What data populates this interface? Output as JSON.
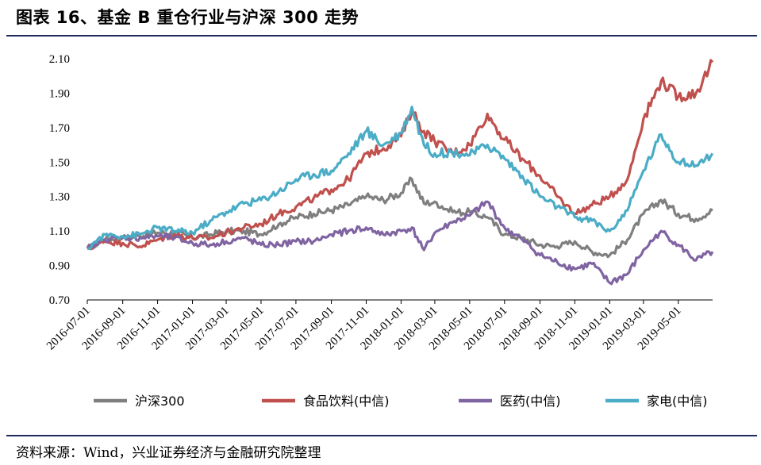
{
  "figure": {
    "title": "图表 16、基金 B 重仓行业与沪深 300 走势",
    "source": "资料来源：Wind，兴业证券经济与金融研究院整理"
  },
  "chart_data": {
    "type": "line",
    "title": "图表 16、基金 B 重仓行业与沪深 300 走势",
    "xlabel": "",
    "ylabel": "",
    "ylim": [
      0.7,
      2.1
    ],
    "yticks": [
      "0.70",
      "0.90",
      "1.10",
      "1.30",
      "1.50",
      "1.70",
      "1.90",
      "2.10"
    ],
    "grid": false,
    "legend_position": "bottom",
    "x_tick_labels": [
      "2016-07-01",
      "2016-09-01",
      "2016-11-01",
      "2017-01-01",
      "2017-03-01",
      "2017-05-01",
      "2017-07-01",
      "2017-09-01",
      "2017-11-01",
      "2018-01-01",
      "2018-03-01",
      "2018-05-01",
      "2018-07-01",
      "2018-09-01",
      "2018-11-01",
      "2019-01-01",
      "2019-03-01",
      "2019-05-01"
    ],
    "x": [
      "2016-07-01",
      "2016-08-01",
      "2016-09-01",
      "2016-10-01",
      "2016-11-01",
      "2016-12-01",
      "2017-01-01",
      "2017-02-01",
      "2017-03-01",
      "2017-04-01",
      "2017-05-01",
      "2017-06-01",
      "2017-07-01",
      "2017-08-01",
      "2017-09-01",
      "2017-10-01",
      "2017-11-01",
      "2017-12-01",
      "2018-01-01",
      "2018-01-20",
      "2018-02-10",
      "2018-03-01",
      "2018-04-01",
      "2018-05-01",
      "2018-06-01",
      "2018-07-01",
      "2018-08-01",
      "2018-09-01",
      "2018-10-01",
      "2018-11-01",
      "2018-12-01",
      "2019-01-01",
      "2019-02-01",
      "2019-03-01",
      "2019-04-01",
      "2019-05-01",
      "2019-06-01",
      "2019-06-30"
    ],
    "series": [
      {
        "name": "沪深300",
        "color": "#7f7f7f",
        "values": [
          1.0,
          1.05,
          1.06,
          1.07,
          1.09,
          1.09,
          1.06,
          1.08,
          1.1,
          1.1,
          1.08,
          1.14,
          1.18,
          1.2,
          1.22,
          1.25,
          1.3,
          1.28,
          1.32,
          1.4,
          1.26,
          1.27,
          1.21,
          1.21,
          1.18,
          1.08,
          1.06,
          1.02,
          1.01,
          1.04,
          0.98,
          0.96,
          1.05,
          1.2,
          1.28,
          1.2,
          1.17,
          1.22
        ]
      },
      {
        "name": "食品饮料(中信)",
        "color": "#c0504d",
        "values": [
          1.0,
          1.04,
          1.03,
          1.01,
          1.05,
          1.08,
          1.06,
          1.06,
          1.09,
          1.12,
          1.14,
          1.2,
          1.24,
          1.29,
          1.34,
          1.4,
          1.55,
          1.58,
          1.65,
          1.8,
          1.68,
          1.62,
          1.55,
          1.6,
          1.78,
          1.63,
          1.52,
          1.42,
          1.3,
          1.2,
          1.25,
          1.3,
          1.4,
          1.75,
          1.97,
          1.88,
          1.9,
          2.08
        ]
      },
      {
        "name": "医药(中信)",
        "color": "#8064a2",
        "values": [
          1.0,
          1.05,
          1.06,
          1.06,
          1.07,
          1.06,
          1.03,
          1.02,
          1.04,
          1.06,
          1.02,
          1.02,
          1.04,
          1.04,
          1.08,
          1.1,
          1.12,
          1.08,
          1.1,
          1.12,
          0.99,
          1.09,
          1.15,
          1.19,
          1.27,
          1.12,
          1.05,
          0.96,
          0.92,
          0.88,
          0.91,
          0.8,
          0.85,
          0.99,
          1.1,
          1.02,
          0.93,
          0.98
        ]
      },
      {
        "name": "家电(中信)",
        "color": "#4bacc6",
        "values": [
          1.0,
          1.08,
          1.07,
          1.08,
          1.12,
          1.1,
          1.09,
          1.16,
          1.21,
          1.26,
          1.28,
          1.33,
          1.4,
          1.43,
          1.45,
          1.55,
          1.68,
          1.6,
          1.67,
          1.82,
          1.6,
          1.55,
          1.56,
          1.54,
          1.6,
          1.52,
          1.42,
          1.3,
          1.24,
          1.18,
          1.16,
          1.1,
          1.22,
          1.45,
          1.66,
          1.5,
          1.48,
          1.55
        ]
      }
    ]
  }
}
